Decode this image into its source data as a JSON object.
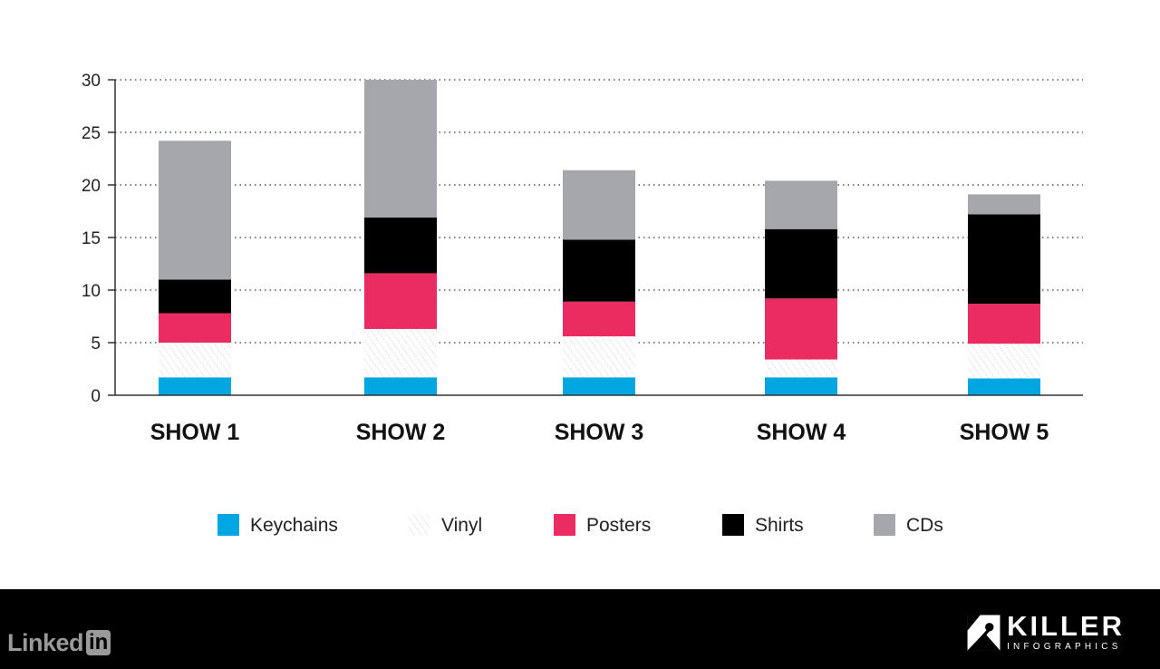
{
  "chart_data": {
    "type": "bar",
    "stacked": true,
    "categories": [
      "SHOW 1",
      "SHOW 2",
      "SHOW 3",
      "SHOW 4",
      "SHOW 5"
    ],
    "series": [
      {
        "name": "Keychains",
        "color": "#00a6e0",
        "pattern": "solid",
        "values": [
          1.7,
          1.7,
          1.7,
          1.7,
          1.6
        ]
      },
      {
        "name": "Vinyl",
        "color": "#bdbdbd",
        "pattern": "hatched",
        "values": [
          3.3,
          4.6,
          3.9,
          1.7,
          3.3
        ]
      },
      {
        "name": "Posters",
        "color": "#ea2c62",
        "pattern": "solid",
        "values": [
          2.8,
          5.3,
          3.3,
          5.8,
          3.8
        ]
      },
      {
        "name": "Shirts",
        "color": "#000000",
        "pattern": "solid",
        "values": [
          3.2,
          5.3,
          5.9,
          6.6,
          8.5
        ]
      },
      {
        "name": "CDs",
        "color": "#a6a7aa",
        "pattern": "solid",
        "values": [
          13.2,
          13.1,
          6.6,
          4.6,
          1.9
        ]
      }
    ],
    "yticks": [
      0,
      5,
      10,
      15,
      20,
      25,
      30
    ],
    "ylim": [
      0,
      30
    ],
    "title": "",
    "xlabel": "",
    "ylabel": "",
    "grid": "horizontal dotted",
    "legend_placement": "bottom"
  },
  "footer": {
    "linkedin_text": "Linked",
    "linkedin_box": "in",
    "brand_word": "KILLER",
    "brand_sub": "INFOGRAPHICS"
  }
}
